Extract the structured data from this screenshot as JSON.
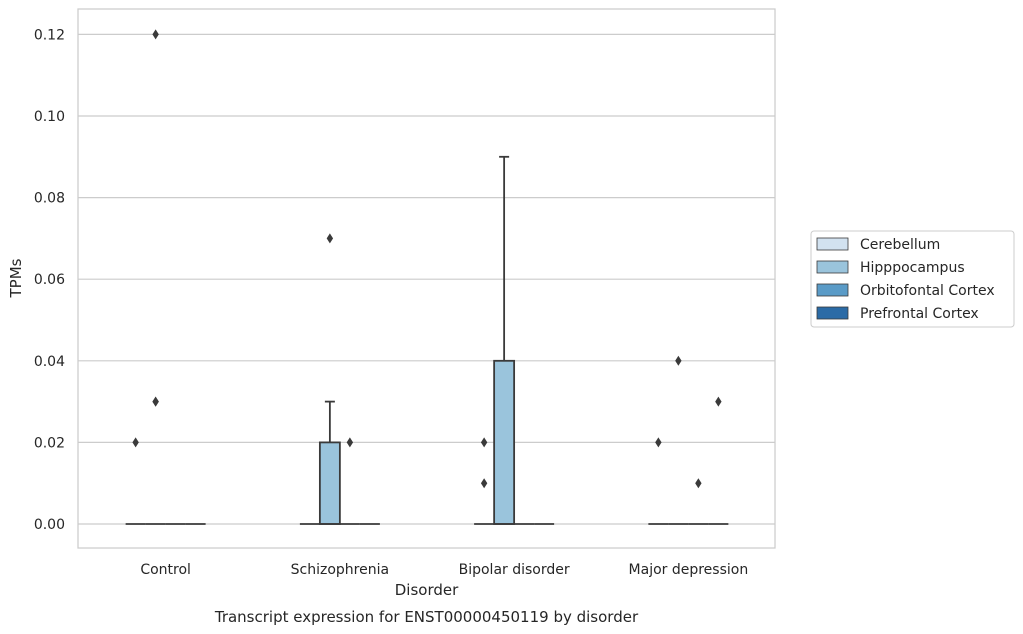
{
  "chart_data": {
    "type": "box",
    "caption": "Transcript expression for ENST00000450119 by disorder",
    "xlabel": "Disorder",
    "ylabel": "TPMs",
    "ylim": [
      -0.006,
      0.126
    ],
    "yticks": [
      "0.00",
      "0.02",
      "0.04",
      "0.06",
      "0.08",
      "0.10",
      "0.12"
    ],
    "grid": "horizontal",
    "legend_position": "right",
    "categories": [
      "Control",
      "Schizophrenia",
      "Bipolar disorder",
      "Major depression"
    ],
    "series": [
      {
        "name": "Cerebellum",
        "color": "#d2e2f0",
        "boxes": [
          {
            "q1": 0,
            "median": 0,
            "q3": 0,
            "whisker_low": 0,
            "whisker_high": 0,
            "outliers": [
              0.02
            ]
          },
          {
            "q1": 0,
            "median": 0,
            "q3": 0,
            "whisker_low": 0,
            "whisker_high": 0,
            "outliers": []
          },
          {
            "q1": 0,
            "median": 0,
            "q3": 0,
            "whisker_low": 0,
            "whisker_high": 0,
            "outliers": [
              0.02,
              0.01
            ]
          },
          {
            "q1": 0,
            "median": 0,
            "q3": 0,
            "whisker_low": 0,
            "whisker_high": 0,
            "outliers": [
              0.02
            ]
          }
        ]
      },
      {
        "name": "Hipppocampus",
        "color": "#9ac4dc",
        "boxes": [
          {
            "q1": 0,
            "median": 0,
            "q3": 0,
            "whisker_low": 0,
            "whisker_high": 0,
            "outliers": [
              0.12,
              0.03,
              0.03
            ]
          },
          {
            "q1": 0,
            "median": 0,
            "q3": 0.02,
            "whisker_low": 0,
            "whisker_high": 0.03,
            "outliers": [
              0.07
            ]
          },
          {
            "q1": 0,
            "median": 0,
            "q3": 0.04,
            "whisker_low": 0,
            "whisker_high": 0.09,
            "outliers": []
          },
          {
            "q1": 0,
            "median": 0,
            "q3": 0,
            "whisker_low": 0,
            "whisker_high": 0,
            "outliers": [
              0.04
            ]
          }
        ]
      },
      {
        "name": "Orbitofontal Cortex",
        "color": "#5a9bc7",
        "boxes": [
          {
            "q1": 0,
            "median": 0,
            "q3": 0,
            "whisker_low": 0,
            "whisker_high": 0,
            "outliers": []
          },
          {
            "q1": 0,
            "median": 0,
            "q3": 0,
            "whisker_low": 0,
            "whisker_high": 0,
            "outliers": [
              0.02
            ]
          },
          {
            "q1": 0,
            "median": 0,
            "q3": 0,
            "whisker_low": 0,
            "whisker_high": 0,
            "outliers": []
          },
          {
            "q1": 0,
            "median": 0,
            "q3": 0,
            "whisker_low": 0,
            "whisker_high": 0,
            "outliers": [
              0.01
            ]
          }
        ]
      },
      {
        "name": "Prefrontal Cortex",
        "color": "#2b6ba6",
        "boxes": [
          {
            "q1": 0,
            "median": 0,
            "q3": 0,
            "whisker_low": 0,
            "whisker_high": 0,
            "outliers": []
          },
          {
            "q1": 0,
            "median": 0,
            "q3": 0,
            "whisker_low": 0,
            "whisker_high": 0,
            "outliers": []
          },
          {
            "q1": 0,
            "median": 0,
            "q3": 0,
            "whisker_low": 0,
            "whisker_high": 0,
            "outliers": []
          },
          {
            "q1": 0,
            "median": 0,
            "q3": 0,
            "whisker_low": 0,
            "whisker_high": 0,
            "outliers": [
              0.03
            ]
          }
        ]
      }
    ]
  }
}
